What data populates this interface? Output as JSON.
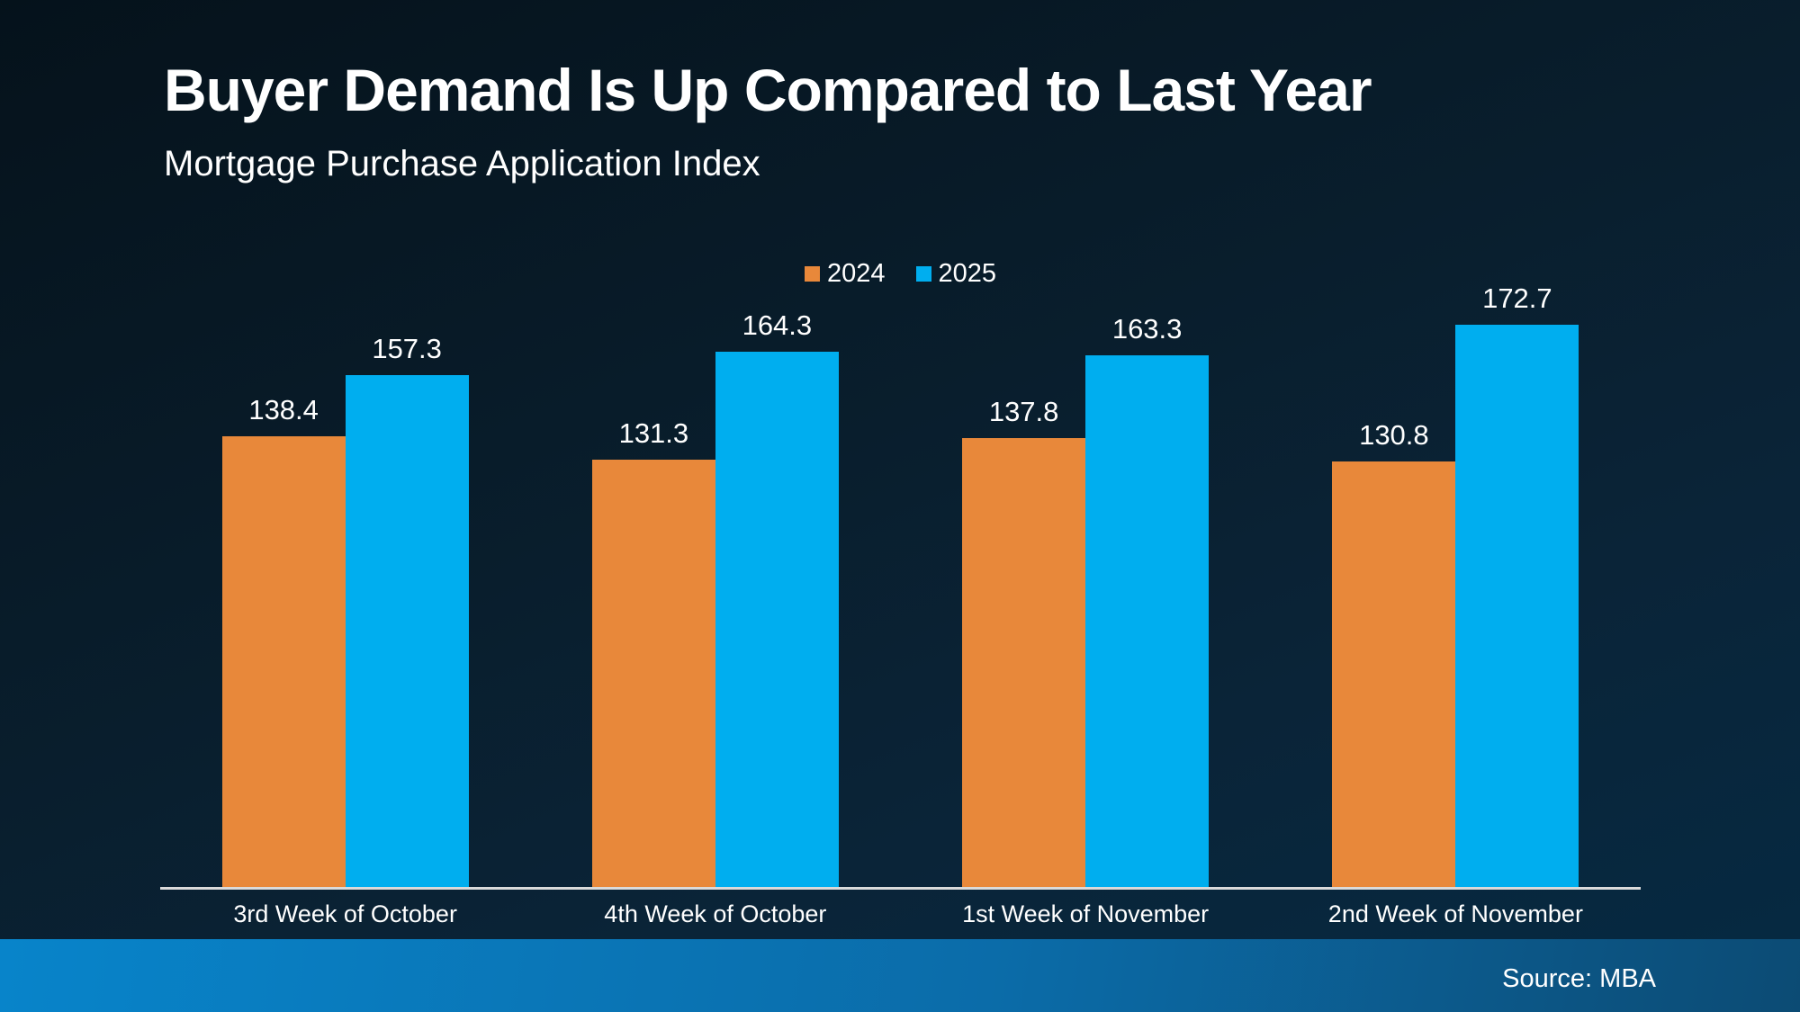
{
  "header": {
    "title": "Buyer Demand Is Up Compared to Last Year",
    "subtitle": "Mortgage Purchase Application Index"
  },
  "footer": {
    "source": "Source: MBA"
  },
  "colors": {
    "series_2024": "#E8883A",
    "series_2025": "#00AEEF",
    "axis_line": "#DADADA",
    "text": "#FFFFFF",
    "background_top": "#05121B",
    "background_bottom": "#052A43",
    "footer_gradient_left": "#0884CA",
    "footer_gradient_right": "#0C4B74"
  },
  "chart_data": {
    "type": "bar",
    "title": "Buyer Demand Is Up Compared to Last Year",
    "subtitle": "Mortgage Purchase Application Index",
    "categories": [
      "3rd Week of October",
      "4th Week of October",
      "1st Week of November",
      "2nd Week of November"
    ],
    "series": [
      {
        "name": "2024",
        "color": "#E8883A",
        "values": [
          138.4,
          131.3,
          137.8,
          130.8
        ]
      },
      {
        "name": "2025",
        "color": "#00AEEF",
        "values": [
          157.3,
          164.3,
          163.3,
          172.7
        ]
      }
    ],
    "ylim": [
      0,
      180
    ],
    "grid": false,
    "y_axis_visible": false,
    "legend_position": "top-center",
    "bar_value_labels": true,
    "source": "Source: MBA"
  }
}
